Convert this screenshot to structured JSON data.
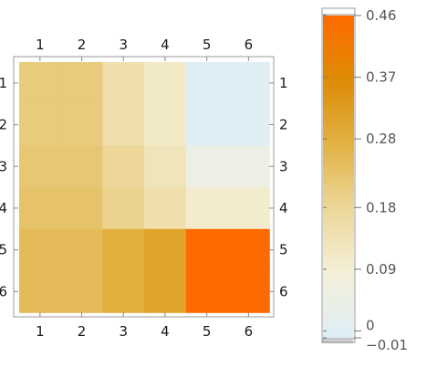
{
  "chart_data": [
    {
      "type": "heatmap",
      "title": "",
      "rows": [
        "1",
        "2",
        "3",
        "4",
        "5",
        "6"
      ],
      "columns": [
        "1",
        "2",
        "3",
        "4",
        "5",
        "6"
      ],
      "values": [
        [
          0.21,
          0.21,
          0.15,
          0.11,
          -0.005,
          -0.005
        ],
        [
          0.21,
          0.21,
          0.15,
          0.11,
          -0.005,
          -0.005
        ],
        [
          0.22,
          0.22,
          0.18,
          0.13,
          0.05,
          0.05
        ],
        [
          0.23,
          0.23,
          0.19,
          0.15,
          0.1,
          0.1
        ],
        [
          0.25,
          0.25,
          0.28,
          0.31,
          0.46,
          0.46
        ],
        [
          0.25,
          0.25,
          0.28,
          0.31,
          0.46,
          0.46
        ]
      ],
      "grid": false
    },
    {
      "type": "colorbar",
      "ticks": [
        0.46,
        0.37,
        0.28,
        0.18,
        0.09,
        0,
        -0.01
      ],
      "tick_labels": [
        "0.46",
        "0.37",
        "0.28",
        "0.18",
        "0.09",
        "0",
        "−0.01"
      ],
      "range": [
        -0.01,
        0.46
      ],
      "colors": [
        "#deeef7",
        "#f4efd8",
        "#ecd89a",
        "#e2b244",
        "#dd8c06",
        "#ff6a00"
      ]
    }
  ]
}
